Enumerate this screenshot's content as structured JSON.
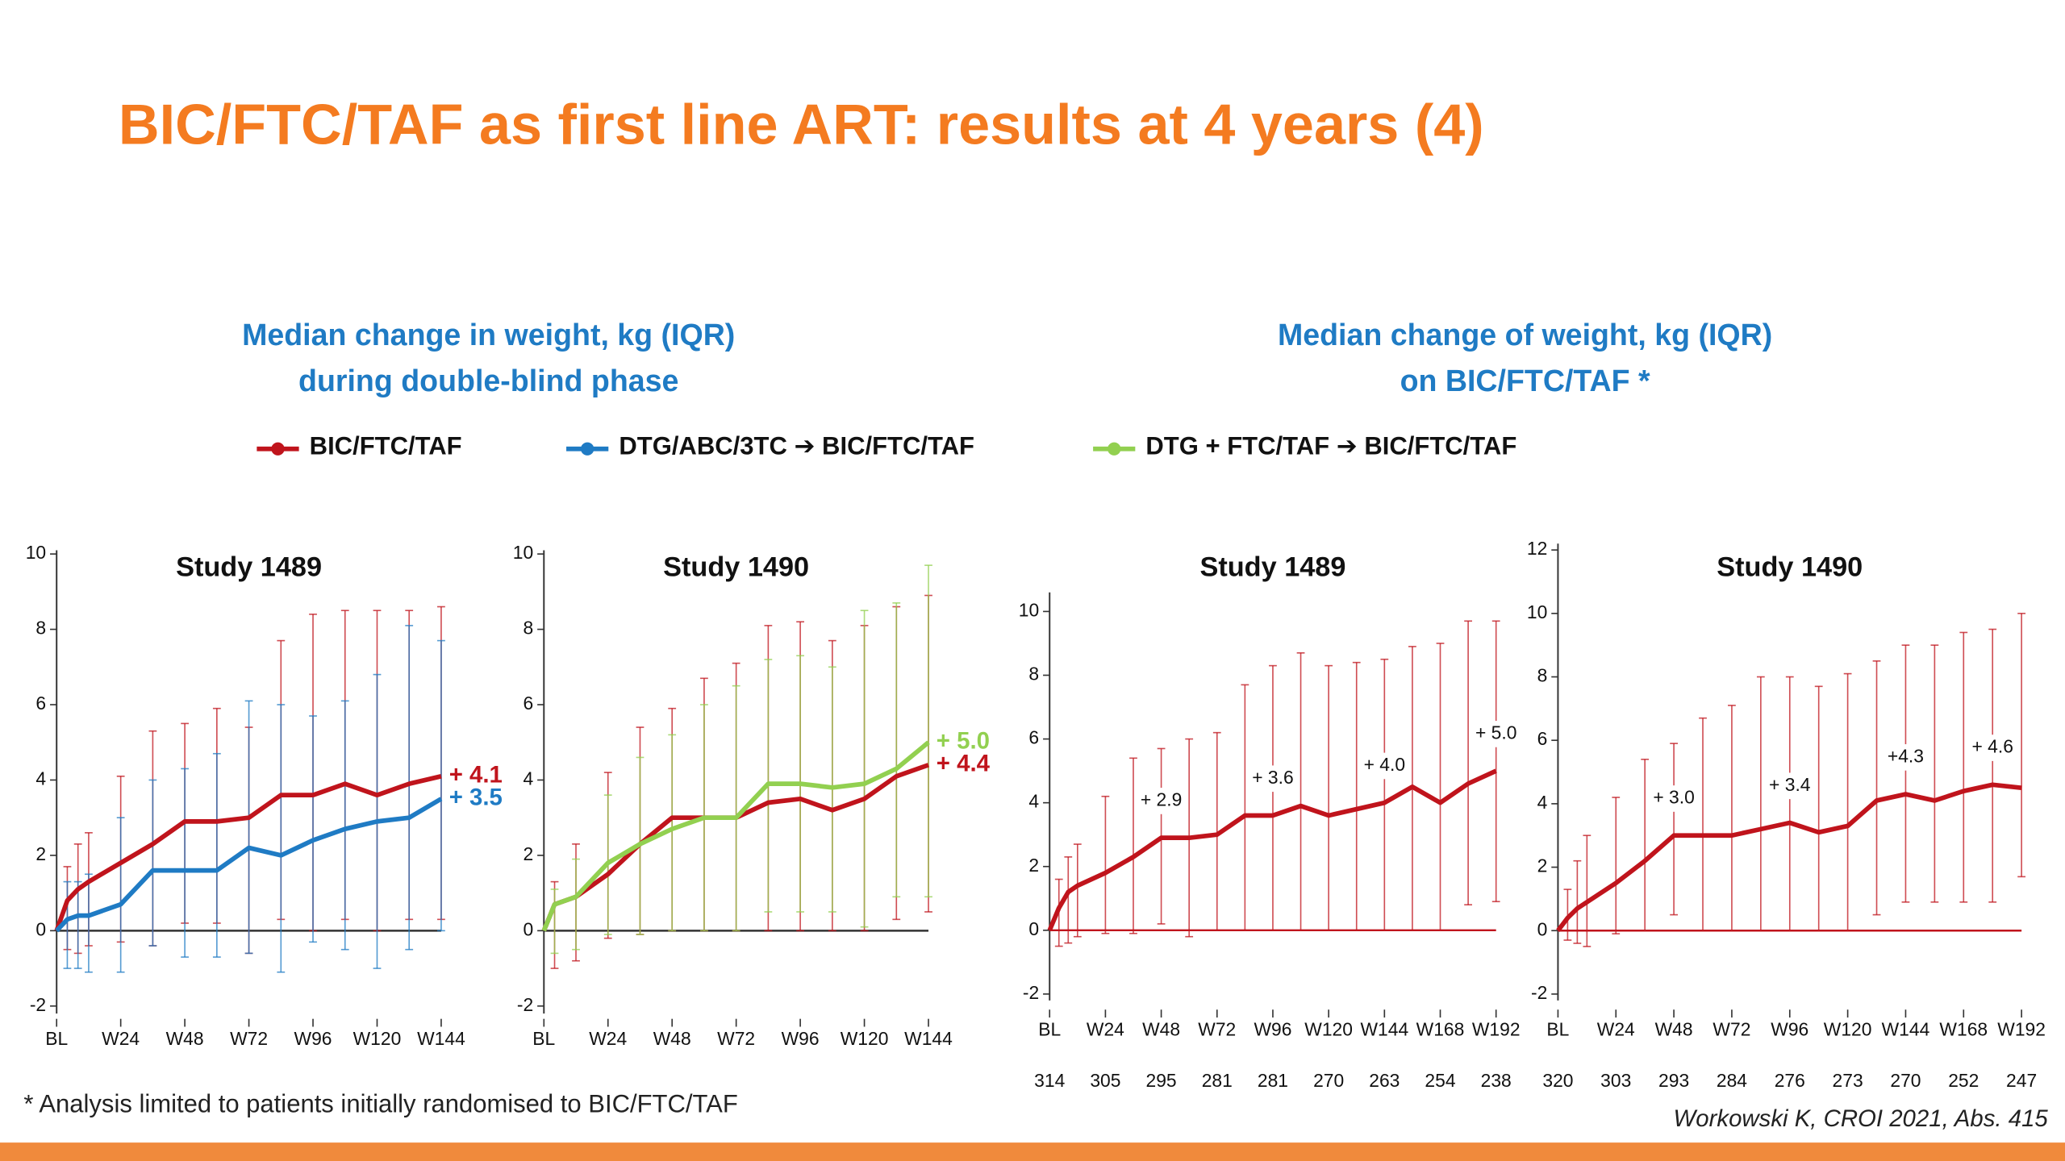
{
  "title": "BIC/FTC/TAF as first line ART: results at 4 years (4)",
  "subtitles": [
    [
      "Median change in weight, kg (IQR)",
      "during double-blind phase"
    ],
    [
      "Median change of weight, kg (IQR)",
      "on BIC/FTC/TAF *"
    ]
  ],
  "footnote": "* Analysis limited to patients initially randomised to BIC/FTC/TAF",
  "citation": "Workowski K, CROI 2021, Abs. 415",
  "chart_data": [
    {
      "type": "line",
      "title": "Study 1489",
      "xlim": [
        0,
        144
      ],
      "ylim": [
        -2.2,
        10.1
      ],
      "xticks": [
        {
          "value": 0,
          "label": "BL"
        },
        {
          "value": 24,
          "label": "W24"
        },
        {
          "value": 48,
          "label": "W48"
        },
        {
          "value": 72,
          "label": "W72"
        },
        {
          "value": 96,
          "label": "W96"
        },
        {
          "value": 120,
          "label": "W120"
        },
        {
          "value": 144,
          "label": "W144"
        }
      ],
      "yticks": [
        -2,
        0,
        2,
        4,
        6,
        8,
        10
      ],
      "zero_line_color": "#333333",
      "label_position": "right",
      "x": [
        0,
        4,
        8,
        12,
        24,
        36,
        48,
        60,
        72,
        84,
        96,
        108,
        120,
        132,
        144
      ],
      "series": [
        {
          "name": "BIC/FTC/TAF",
          "color": "#c0141c",
          "values": [
            0,
            0.8,
            1.1,
            1.3,
            1.8,
            2.3,
            2.9,
            2.9,
            3.0,
            3.6,
            3.6,
            3.9,
            3.6,
            3.9,
            4.1
          ],
          "upper": [
            null,
            1.7,
            2.3,
            2.6,
            4.1,
            5.3,
            5.5,
            5.9,
            5.4,
            7.7,
            8.4,
            8.5,
            8.5,
            8.5,
            8.6
          ],
          "lower": [
            null,
            -0.5,
            -0.6,
            -0.4,
            -0.3,
            -0.4,
            0.2,
            0.2,
            -0.6,
            0.3,
            0,
            0.3,
            0,
            0.3,
            0.3
          ],
          "value_labels": [
            null,
            null,
            null,
            null,
            null,
            null,
            null,
            null,
            null,
            null,
            null,
            null,
            null,
            null,
            "+ 4.1"
          ]
        },
        {
          "name": "DTG/ABC/3TC ➔ BIC/FTC/TAF",
          "color": "#1f7bc4",
          "values": [
            0,
            0.3,
            0.4,
            0.4,
            0.7,
            1.6,
            1.6,
            1.6,
            2.2,
            2.0,
            2.4,
            2.7,
            2.9,
            3.0,
            3.5
          ],
          "upper": [
            null,
            1.3,
            1.3,
            1.5,
            3.0,
            4.0,
            4.3,
            4.7,
            6.1,
            6.0,
            5.7,
            6.1,
            6.8,
            8.1,
            7.7
          ],
          "lower": [
            null,
            -1.0,
            -1.0,
            -1.1,
            -1.1,
            -0.4,
            -0.7,
            -0.7,
            -0.6,
            -1.1,
            -0.3,
            -0.5,
            -1.0,
            -0.5,
            0
          ],
          "value_labels": [
            null,
            null,
            null,
            null,
            null,
            null,
            null,
            null,
            null,
            null,
            null,
            null,
            null,
            null,
            "+ 3.5"
          ]
        }
      ]
    },
    {
      "type": "line",
      "title": "Study 1490",
      "xlim": [
        0,
        144
      ],
      "ylim": [
        -2.2,
        10.1
      ],
      "xticks": [
        {
          "value": 0,
          "label": "BL"
        },
        {
          "value": 24,
          "label": "W24"
        },
        {
          "value": 48,
          "label": "W48"
        },
        {
          "value": 72,
          "label": "W72"
        },
        {
          "value": 96,
          "label": "W96"
        },
        {
          "value": 120,
          "label": "W120"
        },
        {
          "value": 144,
          "label": "W144"
        }
      ],
      "yticks": [
        -2,
        0,
        2,
        4,
        6,
        8,
        10
      ],
      "zero_line_color": "#333333",
      "label_position": "right",
      "x": [
        0,
        4,
        12,
        24,
        36,
        48,
        60,
        72,
        84,
        96,
        108,
        120,
        132,
        144
      ],
      "series": [
        {
          "color": "#c0141c",
          "values": [
            0,
            0.7,
            0.9,
            1.5,
            2.3,
            3.0,
            3.0,
            3.0,
            3.4,
            3.5,
            3.2,
            3.5,
            4.1,
            4.4
          ],
          "upper": [
            null,
            1.3,
            2.3,
            4.2,
            5.4,
            5.9,
            6.7,
            7.1,
            8.1,
            8.2,
            7.7,
            8.1,
            8.6,
            8.9
          ],
          "lower": [
            null,
            -1.0,
            -0.8,
            -0.2,
            -0.1,
            0,
            0,
            0,
            0,
            0,
            0,
            0,
            0.3,
            0.5
          ],
          "value_labels": [
            null,
            null,
            null,
            null,
            null,
            null,
            null,
            null,
            null,
            null,
            null,
            null,
            null,
            "+ 4.4"
          ]
        },
        {
          "name": "DTG + FTC/TAF ➔ BIC/FTC/TAF",
          "color": "#92d050",
          "values": [
            0,
            0.7,
            0.9,
            1.8,
            2.3,
            2.7,
            3.0,
            3.0,
            3.9,
            3.9,
            3.8,
            3.9,
            4.3,
            5.0
          ],
          "upper": [
            null,
            1.1,
            1.9,
            3.6,
            4.6,
            5.2,
            6.0,
            6.5,
            7.2,
            7.3,
            7.0,
            8.5,
            8.7,
            9.7
          ],
          "lower": [
            null,
            -0.6,
            -0.5,
            -0.1,
            -0.1,
            0,
            0,
            0,
            0.5,
            0.5,
            0.5,
            0.1,
            0.9,
            0.9
          ],
          "value_labels": [
            null,
            null,
            null,
            null,
            null,
            null,
            null,
            null,
            null,
            null,
            null,
            null,
            null,
            "+ 5.0"
          ]
        }
      ]
    },
    {
      "type": "line",
      "title": "Study 1489",
      "xlim": [
        0,
        192
      ],
      "ylim": [
        -2.2,
        10.6
      ],
      "xticks": [
        {
          "value": 0,
          "label": "BL"
        },
        {
          "value": 24,
          "label": "W24"
        },
        {
          "value": 48,
          "label": "W48"
        },
        {
          "value": 72,
          "label": "W72"
        },
        {
          "value": 96,
          "label": "W96"
        },
        {
          "value": 120,
          "label": "W120"
        },
        {
          "value": 144,
          "label": "W144"
        },
        {
          "value": 168,
          "label": "W168"
        },
        {
          "value": 192,
          "label": "W192"
        }
      ],
      "n": [
        314,
        305,
        295,
        281,
        281,
        270,
        263,
        254,
        238
      ],
      "yticks": [
        -2,
        0,
        2,
        4,
        6,
        8,
        10
      ],
      "zero_line_color": "#c0141c",
      "label_position": "above",
      "x": [
        0,
        4,
        8,
        12,
        24,
        36,
        48,
        60,
        72,
        84,
        96,
        108,
        120,
        132,
        144,
        156,
        168,
        180,
        192
      ],
      "series": [
        {
          "color": "#c0141c",
          "values": [
            0,
            0.7,
            1.2,
            1.4,
            1.8,
            2.3,
            2.9,
            2.9,
            3.0,
            3.6,
            3.6,
            3.9,
            3.6,
            3.8,
            4.0,
            4.5,
            4.0,
            4.6,
            5.0
          ],
          "upper": [
            null,
            1.6,
            2.3,
            2.7,
            4.2,
            5.4,
            5.7,
            6.0,
            6.2,
            7.7,
            8.3,
            8.7,
            8.3,
            8.4,
            8.5,
            8.9,
            9.0,
            9.7,
            9.7
          ],
          "lower": [
            null,
            -0.5,
            -0.4,
            -0.2,
            -0.1,
            -0.1,
            0.2,
            -0.2,
            0,
            0,
            0,
            0,
            0,
            0,
            0,
            0,
            0,
            0.8,
            0.9
          ],
          "value_labels": [
            null,
            null,
            null,
            null,
            null,
            null,
            "+ 2.9",
            null,
            null,
            null,
            "+ 3.6",
            null,
            null,
            null,
            "+ 4.0",
            null,
            null,
            null,
            "+ 5.0"
          ]
        }
      ]
    },
    {
      "type": "line",
      "title": "Study 1490",
      "xlim": [
        0,
        192
      ],
      "ylim": [
        -2.2,
        12.2
      ],
      "xticks": [
        {
          "value": 0,
          "label": "BL"
        },
        {
          "value": 24,
          "label": "W24"
        },
        {
          "value": 48,
          "label": "W48"
        },
        {
          "value": 72,
          "label": "W72"
        },
        {
          "value": 96,
          "label": "W96"
        },
        {
          "value": 120,
          "label": "W120"
        },
        {
          "value": 144,
          "label": "W144"
        },
        {
          "value": 168,
          "label": "W168"
        },
        {
          "value": 192,
          "label": "W192"
        }
      ],
      "n": [
        320,
        303,
        293,
        284,
        276,
        273,
        270,
        252,
        247
      ],
      "yticks": [
        -2,
        0,
        2,
        4,
        6,
        8,
        10,
        12
      ],
      "zero_line_color": "#c0141c",
      "label_position": "above",
      "x": [
        0,
        4,
        8,
        12,
        24,
        36,
        48,
        60,
        72,
        84,
        96,
        108,
        120,
        132,
        144,
        156,
        168,
        180,
        192
      ],
      "series": [
        {
          "color": "#c0141c",
          "values": [
            0,
            0.4,
            0.7,
            0.9,
            1.5,
            2.2,
            3.0,
            3.0,
            3.0,
            3.2,
            3.4,
            3.1,
            3.3,
            4.1,
            4.3,
            4.1,
            4.4,
            4.6,
            4.5
          ],
          "upper": [
            null,
            1.3,
            2.2,
            3.0,
            4.2,
            5.4,
            5.9,
            6.7,
            7.1,
            8.0,
            8.0,
            7.7,
            8.1,
            8.5,
            9.0,
            9.0,
            9.4,
            9.5,
            10.0
          ],
          "lower": [
            null,
            -0.3,
            -0.4,
            -0.5,
            -0.1,
            0,
            0.5,
            0,
            0,
            0,
            0,
            0,
            0,
            0.5,
            0.9,
            0.9,
            0.9,
            0.9,
            1.7
          ],
          "value_labels": [
            null,
            null,
            null,
            null,
            null,
            null,
            "+ 3.0",
            null,
            null,
            null,
            "+ 3.4",
            null,
            null,
            null,
            "+4.3",
            null,
            null,
            "+ 4.6",
            null
          ]
        }
      ]
    }
  ]
}
